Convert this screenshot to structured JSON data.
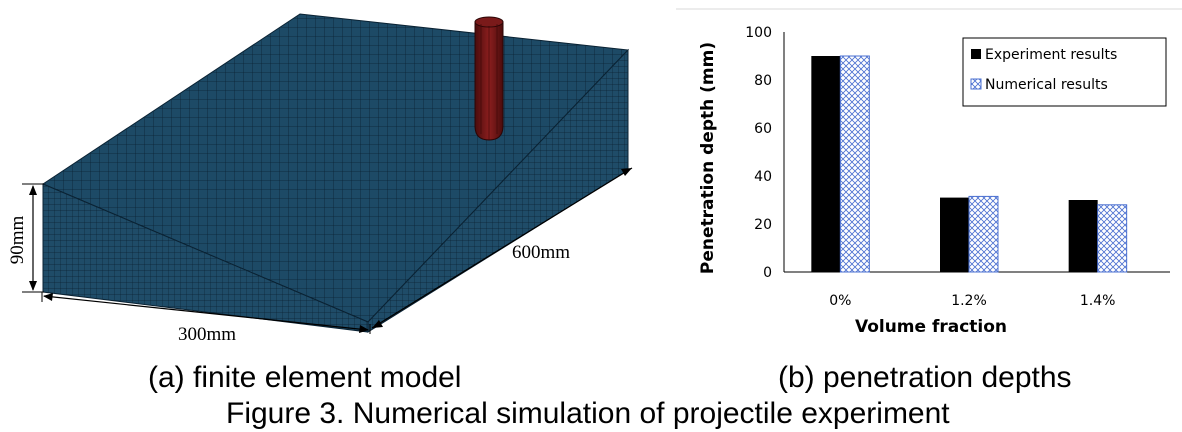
{
  "model": {
    "dimension_height": "90mm",
    "dimension_width": "300mm",
    "dimension_length": "600mm"
  },
  "captions": {
    "a": "(a) finite element model",
    "b": "(b) penetration depths",
    "figure": "Figure 3. Numerical simulation of projectile experiment"
  },
  "colors": {
    "mesh_face": "#1d4a66",
    "mesh_line": "#0a2233",
    "projectile": "#6b1414",
    "experiment_bar": "#000000",
    "numerical_bar_outline": "#4a6fd0"
  },
  "chart_data": {
    "type": "bar",
    "categories": [
      "0%",
      "1.2%",
      "1.4%"
    ],
    "series": [
      {
        "name": "Experiment results",
        "values": [
          90,
          31,
          30
        ],
        "fill": "solid-black"
      },
      {
        "name": "Numerical results",
        "values": [
          90,
          31.5,
          28
        ],
        "fill": "blue-crosshatch"
      }
    ],
    "xlabel": "Volume fraction",
    "ylabel": "Penetration depth (mm)",
    "ylim": [
      0,
      100
    ],
    "yticks": [
      0,
      20,
      40,
      60,
      80,
      100
    ],
    "legend_position": "top-right",
    "grid": false
  }
}
